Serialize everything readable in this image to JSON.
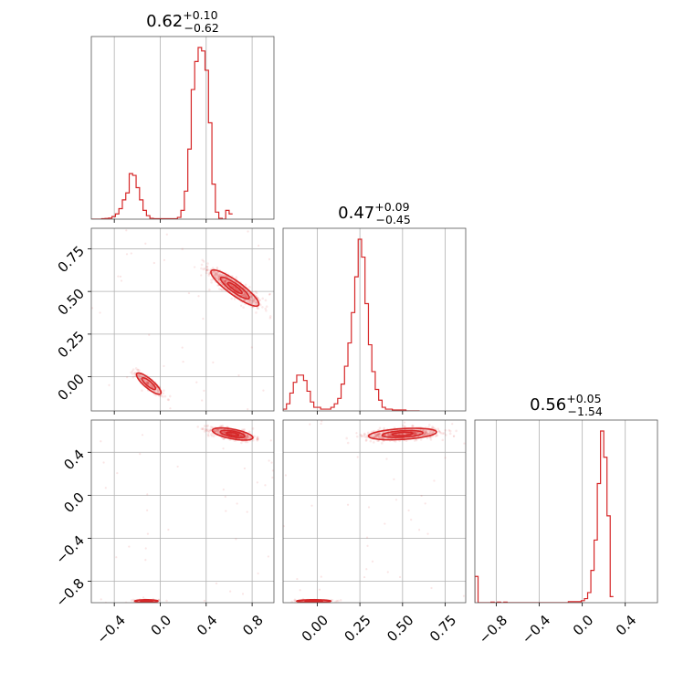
{
  "chart_data": {
    "type": "corner",
    "color": "#d62728",
    "grid": true,
    "parameters": [
      {
        "title": {
          "median": "0.62",
          "plus": "+0.10",
          "minus": "−0.62"
        },
        "range": [
          -0.6,
          0.99
        ],
        "ticks": [
          {
            "value": -0.4,
            "label": "−0.4"
          },
          {
            "value": 0.0,
            "label": "0.0"
          },
          {
            "value": 0.4,
            "label": "0.4"
          },
          {
            "value": 0.8,
            "label": "0.8"
          }
        ]
      },
      {
        "title": {
          "median": "0.47",
          "plus": "+0.09",
          "minus": "−0.45"
        },
        "range": [
          -0.2,
          0.87
        ],
        "ticks": [
          {
            "value": 0.0,
            "label": "0.00"
          },
          {
            "value": 0.25,
            "label": "0.25"
          },
          {
            "value": 0.5,
            "label": "0.50"
          },
          {
            "value": 0.75,
            "label": "0.75"
          }
        ]
      },
      {
        "title": {
          "median": "0.56",
          "plus": "+0.05",
          "minus": "−1.54"
        },
        "range": [
          -1.0,
          0.7
        ],
        "ticks": [
          {
            "value": -0.8,
            "label": "−0.8"
          },
          {
            "value": -0.4,
            "label": "−0.4"
          },
          {
            "value": 0.0,
            "label": "0.0"
          },
          {
            "value": 0.4,
            "label": "0.4"
          }
        ]
      }
    ],
    "histograms": [
      {
        "param": 0,
        "bin_start": -0.6,
        "bin_width": 0.03,
        "counts": [
          0,
          0,
          0,
          0.3,
          0.4,
          0.6,
          1.5,
          3,
          6,
          11,
          15,
          26,
          25,
          18,
          11,
          5,
          2,
          0.5,
          0.3,
          0.3,
          0.3,
          0.3,
          0.3,
          0.3,
          0.3,
          1,
          5,
          16,
          40,
          74,
          90,
          98,
          96,
          85,
          55,
          20,
          4,
          0.5,
          0,
          5,
          3
        ]
      },
      {
        "param": 1,
        "bin_start": -0.2,
        "bin_width": 0.02,
        "counts": [
          1,
          4,
          10,
          16,
          20,
          20,
          17,
          11,
          5,
          2,
          2,
          1,
          1,
          1,
          2,
          4,
          7,
          15,
          25,
          38,
          55,
          75,
          96,
          86,
          60,
          37,
          22,
          12,
          6,
          2,
          1,
          1,
          0.5,
          0.5,
          0.5,
          0.5,
          0,
          0,
          0,
          0
        ]
      },
      {
        "param": 2,
        "bin_start": -1.0,
        "bin_width": 0.03,
        "counts": [
          13,
          0,
          0,
          0,
          0,
          0.3,
          0,
          0.3,
          0,
          0.3,
          0,
          0,
          0,
          0,
          0,
          0,
          0,
          0,
          0,
          0,
          0,
          0,
          0,
          0,
          0,
          0,
          0,
          0,
          0,
          0.5,
          0.5,
          0.5,
          0.5,
          1,
          2,
          5,
          16,
          31,
          59,
          85,
          72,
          43,
          3
        ]
      }
    ],
    "scatter": [
      {
        "x_param": 0,
        "y_param": 1,
        "modes": [
          {
            "cx": 0.65,
            "cy": 0.52,
            "angle": -0.44,
            "major": 0.23,
            "minor": 0.045,
            "count": 520
          },
          {
            "cx": -0.1,
            "cy": -0.04,
            "angle": -0.49,
            "major": 0.12,
            "minor": 0.03,
            "count": 160
          }
        ],
        "contours": [
          {
            "mode": 0,
            "scale": 1.0
          },
          {
            "mode": 0,
            "scale": 0.6
          },
          {
            "mode": 0,
            "scale": 0.3
          },
          {
            "mode": 1,
            "scale": 1.0
          },
          {
            "mode": 1,
            "scale": 0.55
          }
        ]
      },
      {
        "x_param": 0,
        "y_param": 2,
        "modes": [
          {
            "cx": 0.63,
            "cy": 0.57,
            "angle": -0.2,
            "major": 0.18,
            "minor": 0.045,
            "count": 520
          },
          {
            "cx": -0.12,
            "cy": -0.985,
            "angle": 0.0,
            "major": 0.1,
            "minor": 0.012,
            "count": 110
          }
        ],
        "contours": [
          {
            "mode": 0,
            "scale": 1.0
          },
          {
            "mode": 0,
            "scale": 0.6
          },
          {
            "mode": 0,
            "scale": 0.3
          },
          {
            "mode": 1,
            "scale": 1.0
          },
          {
            "mode": 1,
            "scale": 0.5
          }
        ]
      },
      {
        "x_param": 1,
        "y_param": 2,
        "modes": [
          {
            "cx": 0.5,
            "cy": 0.57,
            "angle": 0.1,
            "major": 0.2,
            "minor": 0.05,
            "count": 520
          },
          {
            "cx": -0.02,
            "cy": -0.985,
            "angle": 0.0,
            "major": 0.1,
            "minor": 0.012,
            "count": 110
          }
        ],
        "contours": [
          {
            "mode": 0,
            "scale": 1.0
          },
          {
            "mode": 0,
            "scale": 0.6
          },
          {
            "mode": 0,
            "scale": 0.3
          },
          {
            "mode": 1,
            "scale": 1.0
          },
          {
            "mode": 1,
            "scale": 0.5
          }
        ]
      }
    ]
  }
}
